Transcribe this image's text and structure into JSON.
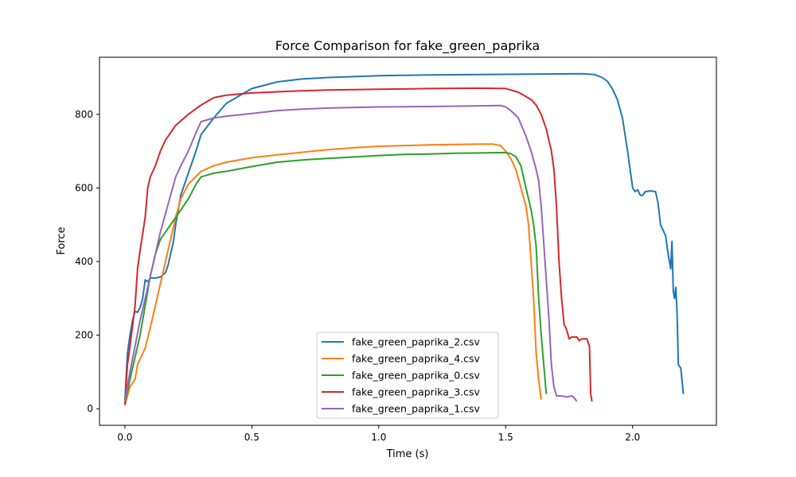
{
  "chart_data": {
    "type": "line",
    "title": "Force Comparison for fake_green_paprika",
    "xlabel": "Time (s)",
    "ylabel": "Force",
    "xlim": [
      -0.1,
      2.33
    ],
    "ylim": [
      -45,
      955
    ],
    "xticks": [
      0.0,
      0.5,
      1.0,
      1.5,
      2.0
    ],
    "xtick_labels": [
      "0.0",
      "0.5",
      "1.0",
      "1.5",
      "2.0"
    ],
    "yticks": [
      0,
      200,
      400,
      600,
      800
    ],
    "ytick_labels": [
      "0",
      "200",
      "400",
      "600",
      "800"
    ],
    "grid": false,
    "legend_position": "lower center",
    "series": [
      {
        "name": "fake_green_paprika_2.csv",
        "color": "#1f77b4",
        "points": [
          [
            0.0,
            20
          ],
          [
            0.01,
            150
          ],
          [
            0.02,
            200
          ],
          [
            0.03,
            240
          ],
          [
            0.04,
            265
          ],
          [
            0.05,
            262
          ],
          [
            0.06,
            275
          ],
          [
            0.07,
            300
          ],
          [
            0.08,
            350
          ],
          [
            0.09,
            345
          ],
          [
            0.1,
            355
          ],
          [
            0.12,
            355
          ],
          [
            0.14,
            358
          ],
          [
            0.16,
            370
          ],
          [
            0.17,
            390
          ],
          [
            0.18,
            420
          ],
          [
            0.19,
            450
          ],
          [
            0.2,
            500
          ],
          [
            0.22,
            580
          ],
          [
            0.25,
            640
          ],
          [
            0.28,
            700
          ],
          [
            0.3,
            745
          ],
          [
            0.35,
            790
          ],
          [
            0.4,
            830
          ],
          [
            0.5,
            870
          ],
          [
            0.6,
            888
          ],
          [
            0.7,
            896
          ],
          [
            0.8,
            900
          ],
          [
            1.0,
            905
          ],
          [
            1.2,
            907
          ],
          [
            1.4,
            908
          ],
          [
            1.6,
            909
          ],
          [
            1.8,
            910
          ],
          [
            1.85,
            908
          ],
          [
            1.88,
            900
          ],
          [
            1.9,
            890
          ],
          [
            1.92,
            870
          ],
          [
            1.94,
            840
          ],
          [
            1.96,
            790
          ],
          [
            1.98,
            700
          ],
          [
            1.99,
            650
          ],
          [
            2.0,
            600
          ],
          [
            2.01,
            590
          ],
          [
            2.02,
            595
          ],
          [
            2.03,
            580
          ],
          [
            2.04,
            580
          ],
          [
            2.05,
            590
          ],
          [
            2.07,
            592
          ],
          [
            2.09,
            590
          ],
          [
            2.1,
            560
          ],
          [
            2.11,
            500
          ],
          [
            2.13,
            470
          ],
          [
            2.14,
            420
          ],
          [
            2.15,
            380
          ],
          [
            2.155,
            455
          ],
          [
            2.16,
            320
          ],
          [
            2.165,
            300
          ],
          [
            2.17,
            330
          ],
          [
            2.175,
            260
          ],
          [
            2.18,
            120
          ],
          [
            2.19,
            110
          ],
          [
            2.2,
            40
          ]
        ]
      },
      {
        "name": "fake_green_paprika_4.csv",
        "color": "#ff7f0e",
        "points": [
          [
            0.0,
            10
          ],
          [
            0.02,
            60
          ],
          [
            0.04,
            80
          ],
          [
            0.05,
            120
          ],
          [
            0.07,
            150
          ],
          [
            0.08,
            165
          ],
          [
            0.1,
            220
          ],
          [
            0.12,
            280
          ],
          [
            0.14,
            340
          ],
          [
            0.16,
            400
          ],
          [
            0.18,
            460
          ],
          [
            0.2,
            520
          ],
          [
            0.22,
            570
          ],
          [
            0.25,
            610
          ],
          [
            0.3,
            645
          ],
          [
            0.35,
            660
          ],
          [
            0.4,
            670
          ],
          [
            0.5,
            682
          ],
          [
            0.6,
            690
          ],
          [
            0.7,
            697
          ],
          [
            0.8,
            704
          ],
          [
            0.9,
            709
          ],
          [
            1.0,
            713
          ],
          [
            1.1,
            715
          ],
          [
            1.2,
            717
          ],
          [
            1.3,
            718
          ],
          [
            1.4,
            719
          ],
          [
            1.45,
            719
          ],
          [
            1.48,
            715
          ],
          [
            1.5,
            700
          ],
          [
            1.52,
            680
          ],
          [
            1.54,
            650
          ],
          [
            1.56,
            600
          ],
          [
            1.58,
            550
          ],
          [
            1.59,
            500
          ],
          [
            1.6,
            400
          ],
          [
            1.61,
            300
          ],
          [
            1.62,
            150
          ],
          [
            1.63,
            80
          ],
          [
            1.64,
            25
          ]
        ]
      },
      {
        "name": "fake_green_paprika_0.csv",
        "color": "#2ca02c",
        "points": [
          [
            0.0,
            15
          ],
          [
            0.02,
            80
          ],
          [
            0.04,
            140
          ],
          [
            0.06,
            200
          ],
          [
            0.08,
            280
          ],
          [
            0.1,
            360
          ],
          [
            0.12,
            420
          ],
          [
            0.14,
            460
          ],
          [
            0.16,
            480
          ],
          [
            0.18,
            500
          ],
          [
            0.2,
            520
          ],
          [
            0.22,
            540
          ],
          [
            0.25,
            570
          ],
          [
            0.28,
            610
          ],
          [
            0.3,
            630
          ],
          [
            0.35,
            640
          ],
          [
            0.4,
            645
          ],
          [
            0.5,
            658
          ],
          [
            0.6,
            670
          ],
          [
            0.7,
            676
          ],
          [
            0.8,
            680
          ],
          [
            0.9,
            684
          ],
          [
            1.0,
            688
          ],
          [
            1.1,
            691
          ],
          [
            1.2,
            692
          ],
          [
            1.3,
            694
          ],
          [
            1.4,
            695
          ],
          [
            1.5,
            696
          ],
          [
            1.52,
            693
          ],
          [
            1.54,
            685
          ],
          [
            1.56,
            660
          ],
          [
            1.58,
            600
          ],
          [
            1.6,
            540
          ],
          [
            1.61,
            500
          ],
          [
            1.62,
            440
          ],
          [
            1.63,
            300
          ],
          [
            1.64,
            200
          ],
          [
            1.65,
            120
          ],
          [
            1.66,
            40
          ]
        ]
      },
      {
        "name": "fake_green_paprika_3.csv",
        "color": "#d62728",
        "points": [
          [
            0.0,
            10
          ],
          [
            0.01,
            120
          ],
          [
            0.02,
            170
          ],
          [
            0.04,
            280
          ],
          [
            0.05,
            380
          ],
          [
            0.06,
            430
          ],
          [
            0.08,
            520
          ],
          [
            0.09,
            600
          ],
          [
            0.1,
            630
          ],
          [
            0.12,
            660
          ],
          [
            0.14,
            700
          ],
          [
            0.16,
            730
          ],
          [
            0.18,
            750
          ],
          [
            0.2,
            770
          ],
          [
            0.25,
            800
          ],
          [
            0.3,
            825
          ],
          [
            0.35,
            845
          ],
          [
            0.4,
            852
          ],
          [
            0.5,
            858
          ],
          [
            0.6,
            861
          ],
          [
            0.7,
            864
          ],
          [
            0.8,
            866
          ],
          [
            1.0,
            868
          ],
          [
            1.2,
            870
          ],
          [
            1.4,
            871
          ],
          [
            1.5,
            870
          ],
          [
            1.55,
            860
          ],
          [
            1.6,
            840
          ],
          [
            1.62,
            825
          ],
          [
            1.64,
            800
          ],
          [
            1.66,
            760
          ],
          [
            1.68,
            700
          ],
          [
            1.69,
            650
          ],
          [
            1.7,
            550
          ],
          [
            1.71,
            400
          ],
          [
            1.72,
            300
          ],
          [
            1.73,
            230
          ],
          [
            1.74,
            215
          ],
          [
            1.75,
            190
          ],
          [
            1.76,
            195
          ],
          [
            1.78,
            195
          ],
          [
            1.79,
            185
          ],
          [
            1.8,
            190
          ],
          [
            1.82,
            190
          ],
          [
            1.83,
            170
          ],
          [
            1.835,
            40
          ],
          [
            1.84,
            20
          ]
        ]
      },
      {
        "name": "fake_green_paprika_1.csv",
        "color": "#9467bd",
        "points": [
          [
            0.0,
            20
          ],
          [
            0.02,
            100
          ],
          [
            0.04,
            170
          ],
          [
            0.06,
            240
          ],
          [
            0.08,
            300
          ],
          [
            0.1,
            360
          ],
          [
            0.12,
            420
          ],
          [
            0.14,
            480
          ],
          [
            0.16,
            530
          ],
          [
            0.18,
            580
          ],
          [
            0.2,
            630
          ],
          [
            0.22,
            660
          ],
          [
            0.25,
            700
          ],
          [
            0.28,
            750
          ],
          [
            0.3,
            780
          ],
          [
            0.35,
            790
          ],
          [
            0.4,
            795
          ],
          [
            0.5,
            802
          ],
          [
            0.6,
            810
          ],
          [
            0.7,
            814
          ],
          [
            0.8,
            817
          ],
          [
            1.0,
            820
          ],
          [
            1.2,
            821
          ],
          [
            1.4,
            823
          ],
          [
            1.48,
            824
          ],
          [
            1.5,
            820
          ],
          [
            1.52,
            810
          ],
          [
            1.55,
            790
          ],
          [
            1.58,
            740
          ],
          [
            1.6,
            700
          ],
          [
            1.62,
            650
          ],
          [
            1.63,
            620
          ],
          [
            1.64,
            550
          ],
          [
            1.65,
            450
          ],
          [
            1.66,
            350
          ],
          [
            1.67,
            250
          ],
          [
            1.68,
            120
          ],
          [
            1.69,
            60
          ],
          [
            1.7,
            35
          ],
          [
            1.72,
            35
          ],
          [
            1.74,
            32
          ],
          [
            1.76,
            35
          ],
          [
            1.77,
            30
          ],
          [
            1.78,
            20
          ]
        ]
      }
    ]
  }
}
